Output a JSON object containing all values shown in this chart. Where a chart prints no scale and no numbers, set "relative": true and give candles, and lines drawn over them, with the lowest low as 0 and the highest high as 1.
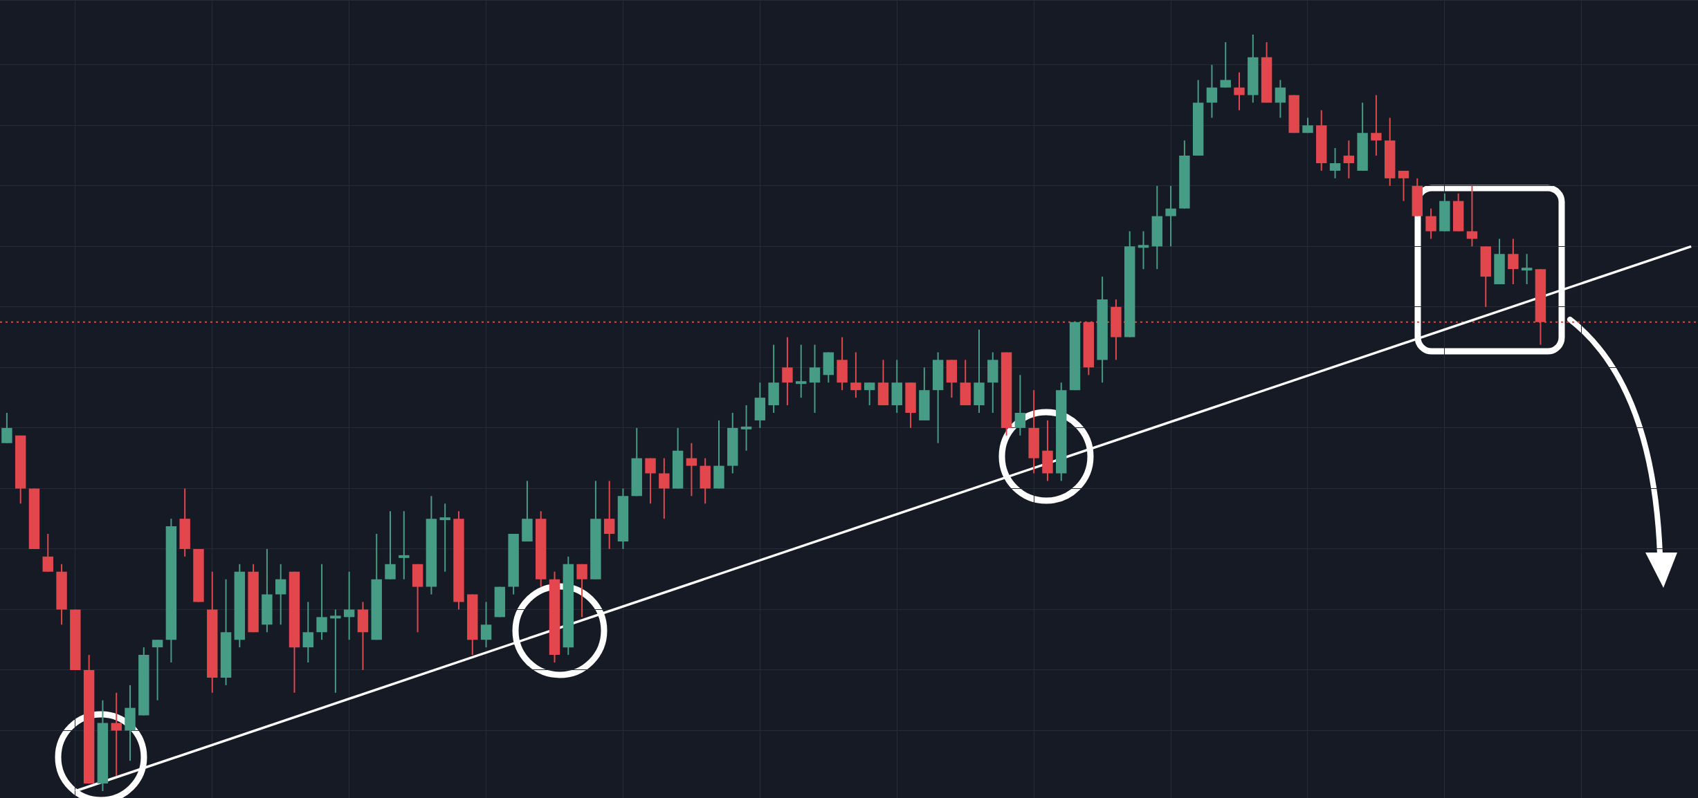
{
  "chart_data": {
    "type": "candlestick",
    "relative": true,
    "grid": true,
    "legend": false,
    "tick_labels": false,
    "categories": [
      null,
      null,
      null,
      null,
      null,
      null,
      null,
      null,
      null,
      null,
      null,
      null,
      null,
      null,
      null,
      null,
      null,
      null,
      null,
      null,
      null,
      null,
      null,
      null,
      null,
      null,
      null,
      null,
      null,
      null,
      null,
      null,
      null,
      null,
      null,
      null,
      null,
      null,
      null,
      null,
      null,
      null,
      null,
      null,
      null,
      null,
      null,
      null,
      null,
      null,
      null,
      null,
      null,
      null,
      null,
      null,
      null,
      null,
      null,
      null,
      null,
      null,
      null,
      null,
      null,
      null,
      null,
      null,
      null,
      null,
      null,
      null,
      null,
      null,
      null,
      null,
      null,
      null,
      null,
      null,
      null,
      null,
      null,
      null,
      null,
      null,
      null,
      null,
      null,
      null,
      null,
      null,
      null,
      null,
      null,
      null,
      null,
      null,
      null,
      null,
      null,
      null,
      null,
      null,
      null,
      null,
      null,
      null,
      null,
      null,
      null,
      null,
      null,
      null,
      null,
      null,
      null,
      null,
      null,
      null,
      null,
      null,
      null,
      null
    ],
    "ohlc": [
      [
        0.46,
        0.5,
        0.46,
        0.48
      ],
      [
        0.47,
        0.47,
        0.38,
        0.4
      ],
      [
        0.4,
        0.4,
        0.32,
        0.32
      ],
      [
        0.31,
        0.34,
        0.29,
        0.29
      ],
      [
        0.29,
        0.3,
        0.22,
        0.24
      ],
      [
        0.24,
        0.24,
        0.16,
        0.16
      ],
      [
        0.16,
        0.18,
        0.01,
        0.01
      ],
      [
        0.01,
        0.12,
        0.0,
        0.09
      ],
      [
        0.09,
        0.13,
        0.02,
        0.08
      ],
      [
        0.08,
        0.14,
        0.04,
        0.11
      ],
      [
        0.1,
        0.19,
        0.1,
        0.18
      ],
      [
        0.19,
        0.2,
        0.12,
        0.2
      ],
      [
        0.2,
        0.36,
        0.17,
        0.35
      ],
      [
        0.36,
        0.4,
        0.31,
        0.32
      ],
      [
        0.32,
        0.32,
        0.25,
        0.25
      ],
      [
        0.24,
        0.29,
        0.13,
        0.15
      ],
      [
        0.15,
        0.28,
        0.14,
        0.21
      ],
      [
        0.2,
        0.3,
        0.19,
        0.29
      ],
      [
        0.29,
        0.3,
        0.21,
        0.21
      ],
      [
        0.22,
        0.32,
        0.21,
        0.26
      ],
      [
        0.26,
        0.3,
        0.22,
        0.28
      ],
      [
        0.29,
        0.29,
        0.13,
        0.19
      ],
      [
        0.19,
        0.25,
        0.17,
        0.21
      ],
      [
        0.21,
        0.3,
        0.2,
        0.23
      ],
      [
        0.23,
        0.24,
        0.13,
        0.23
      ],
      [
        0.23,
        0.29,
        0.2,
        0.24
      ],
      [
        0.24,
        0.25,
        0.16,
        0.21
      ],
      [
        0.2,
        0.34,
        0.2,
        0.28
      ],
      [
        0.28,
        0.37,
        0.28,
        0.3
      ],
      [
        0.31,
        0.37,
        0.28,
        0.31
      ],
      [
        0.3,
        0.3,
        0.21,
        0.27
      ],
      [
        0.27,
        0.39,
        0.26,
        0.36
      ],
      [
        0.36,
        0.38,
        0.29,
        0.36
      ],
      [
        0.36,
        0.37,
        0.24,
        0.25
      ],
      [
        0.26,
        0.26,
        0.18,
        0.2
      ],
      [
        0.2,
        0.25,
        0.19,
        0.22
      ],
      [
        0.23,
        0.27,
        0.23,
        0.27
      ],
      [
        0.27,
        0.34,
        0.26,
        0.34
      ],
      [
        0.33,
        0.41,
        0.33,
        0.36
      ],
      [
        0.36,
        0.37,
        0.27,
        0.28
      ],
      [
        0.28,
        0.29,
        0.17,
        0.18
      ],
      [
        0.19,
        0.31,
        0.18,
        0.3
      ],
      [
        0.3,
        0.3,
        0.23,
        0.28
      ],
      [
        0.28,
        0.41,
        0.28,
        0.36
      ],
      [
        0.36,
        0.41,
        0.32,
        0.34
      ],
      [
        0.33,
        0.4,
        0.32,
        0.39
      ],
      [
        0.39,
        0.48,
        0.39,
        0.44
      ],
      [
        0.44,
        0.44,
        0.38,
        0.42
      ],
      [
        0.42,
        0.44,
        0.36,
        0.4
      ],
      [
        0.4,
        0.48,
        0.4,
        0.45
      ],
      [
        0.44,
        0.46,
        0.39,
        0.43
      ],
      [
        0.43,
        0.44,
        0.38,
        0.4
      ],
      [
        0.4,
        0.49,
        0.4,
        0.43
      ],
      [
        0.43,
        0.5,
        0.42,
        0.48
      ],
      [
        0.48,
        0.51,
        0.45,
        0.48
      ],
      [
        0.49,
        0.54,
        0.48,
        0.52
      ],
      [
        0.51,
        0.59,
        0.5,
        0.54
      ],
      [
        0.56,
        0.6,
        0.51,
        0.54
      ],
      [
        0.54,
        0.59,
        0.52,
        0.54
      ],
      [
        0.54,
        0.59,
        0.5,
        0.56
      ],
      [
        0.55,
        0.58,
        0.54,
        0.58
      ],
      [
        0.57,
        0.6,
        0.53,
        0.54
      ],
      [
        0.54,
        0.58,
        0.52,
        0.53
      ],
      [
        0.53,
        0.54,
        0.51,
        0.54
      ],
      [
        0.54,
        0.57,
        0.51,
        0.51
      ],
      [
        0.51,
        0.57,
        0.5,
        0.54
      ],
      [
        0.54,
        0.54,
        0.48,
        0.5
      ],
      [
        0.49,
        0.56,
        0.49,
        0.53
      ],
      [
        0.53,
        0.58,
        0.46,
        0.57
      ],
      [
        0.57,
        0.57,
        0.52,
        0.54
      ],
      [
        0.54,
        0.57,
        0.51,
        0.51
      ],
      [
        0.51,
        0.61,
        0.5,
        0.54
      ],
      [
        0.54,
        0.58,
        0.5,
        0.57
      ],
      [
        0.58,
        0.58,
        0.47,
        0.48
      ],
      [
        0.48,
        0.55,
        0.47,
        0.5
      ],
      [
        0.48,
        0.53,
        0.42,
        0.44
      ],
      [
        0.45,
        0.49,
        0.41,
        0.42
      ],
      [
        0.42,
        0.54,
        0.41,
        0.53
      ],
      [
        0.53,
        0.62,
        0.53,
        0.62
      ],
      [
        0.62,
        0.62,
        0.55,
        0.56
      ],
      [
        0.57,
        0.68,
        0.54,
        0.65
      ],
      [
        0.64,
        0.65,
        0.57,
        0.6
      ],
      [
        0.6,
        0.74,
        0.6,
        0.72
      ],
      [
        0.72,
        0.74,
        0.69,
        0.72
      ],
      [
        0.72,
        0.8,
        0.69,
        0.76
      ],
      [
        0.76,
        0.8,
        0.72,
        0.77
      ],
      [
        0.77,
        0.86,
        0.77,
        0.84
      ],
      [
        0.84,
        0.94,
        0.84,
        0.91
      ],
      [
        0.91,
        0.96,
        0.89,
        0.93
      ],
      [
        0.93,
        0.99,
        0.93,
        0.94
      ],
      [
        0.93,
        0.95,
        0.9,
        0.92
      ],
      [
        0.92,
        1.0,
        0.91,
        0.97
      ],
      [
        0.97,
        0.99,
        0.91,
        0.91
      ],
      [
        0.91,
        0.94,
        0.89,
        0.93
      ],
      [
        0.92,
        0.92,
        0.87,
        0.87
      ],
      [
        0.87,
        0.89,
        0.87,
        0.88
      ],
      [
        0.88,
        0.9,
        0.82,
        0.83
      ],
      [
        0.82,
        0.85,
        0.81,
        0.83
      ],
      [
        0.84,
        0.86,
        0.81,
        0.83
      ],
      [
        0.82,
        0.91,
        0.82,
        0.87
      ],
      [
        0.87,
        0.92,
        0.84,
        0.86
      ],
      [
        0.86,
        0.89,
        0.8,
        0.81
      ],
      [
        0.82,
        0.82,
        0.78,
        0.81
      ],
      [
        0.8,
        0.81,
        0.76,
        0.76
      ],
      [
        0.76,
        0.77,
        0.73,
        0.74
      ],
      [
        0.74,
        0.79,
        0.74,
        0.78
      ],
      [
        0.78,
        0.79,
        0.74,
        0.74
      ],
      [
        0.74,
        0.8,
        0.72,
        0.73
      ],
      [
        0.72,
        0.72,
        0.64,
        0.68
      ],
      [
        0.67,
        0.73,
        0.67,
        0.71
      ],
      [
        0.71,
        0.73,
        0.67,
        0.69
      ],
      [
        0.69,
        0.71,
        0.67,
        0.69
      ],
      [
        0.69,
        0.69,
        0.59,
        0.62
      ],
      null,
      null,
      null,
      null,
      null,
      null,
      null,
      null,
      null,
      null,
      null
    ],
    "colors": [
      "#479c85",
      "#e2474d",
      "#e2474d",
      "#e2474d",
      "#e2474d",
      "#e2474d",
      "#e2474d",
      "#479c85",
      "#e2474d",
      "#479c85",
      "#479c85",
      "#479c85",
      "#479c85",
      "#e2474d",
      "#e2474d",
      "#e2474d",
      "#479c85",
      "#479c85",
      "#e2474d",
      "#479c85",
      "#479c85",
      "#e2474d",
      "#479c85",
      "#479c85",
      "#479c85",
      "#479c85",
      "#e2474d",
      "#479c85",
      "#479c85",
      "#479c85",
      "#e2474d",
      "#479c85",
      "#479c85",
      "#e2474d",
      "#e2474d",
      "#479c85",
      "#479c85",
      "#479c85",
      "#479c85",
      "#e2474d",
      "#e2474d",
      "#479c85",
      "#e2474d",
      "#479c85",
      "#e2474d",
      "#479c85",
      "#479c85",
      "#e2474d",
      "#e2474d",
      "#479c85",
      "#e2474d",
      "#e2474d",
      "#479c85",
      "#479c85",
      "#479c85",
      "#479c85",
      "#479c85",
      "#e2474d",
      "#479c85",
      "#479c85",
      "#479c85",
      "#e2474d",
      "#e2474d",
      "#479c85",
      "#e2474d",
      "#479c85",
      "#e2474d",
      "#479c85",
      "#479c85",
      "#e2474d",
      "#e2474d",
      "#479c85",
      "#479c85",
      "#e2474d",
      "#479c85",
      "#e2474d",
      "#e2474d",
      "#479c85",
      "#479c85",
      "#e2474d",
      "#479c85",
      "#e2474d",
      "#479c85",
      "#479c85",
      "#479c85",
      "#479c85",
      "#479c85",
      "#479c85",
      "#479c85",
      "#479c85",
      "#e2474d",
      "#479c85",
      "#e2474d",
      "#479c85",
      "#e2474d",
      "#479c85",
      "#e2474d",
      "#479c85",
      "#e2474d",
      "#479c85",
      "#e2474d",
      "#e2474d",
      "#e2474d",
      "#e2474d",
      "#e2474d",
      "#479c85",
      "#e2474d",
      "#e2474d",
      "#e2474d",
      "#479c85",
      "#e2474d",
      "#479c85",
      "#e2474d",
      null,
      null,
      null,
      null,
      null,
      null,
      null,
      null,
      null,
      null,
      null
    ],
    "series": [
      {
        "type": "line",
        "color": "#ffffff",
        "values": [
          null,
          null,
          null,
          null,
          null,
          0.0,
          null,
          null,
          null,
          null,
          null,
          null,
          null,
          null,
          null,
          null,
          null,
          null,
          null,
          null,
          null,
          null,
          null,
          null,
          null,
          null,
          null,
          null,
          null,
          null,
          null,
          null,
          null,
          null,
          null,
          null,
          null,
          null,
          null,
          null,
          null,
          null,
          null,
          null,
          null,
          null,
          null,
          null,
          null,
          null,
          null,
          null,
          null,
          null,
          null,
          null,
          null,
          null,
          null,
          null,
          null,
          null,
          null,
          null,
          null,
          null,
          null,
          null,
          null,
          null,
          null,
          null,
          null,
          null,
          null,
          null,
          null,
          null,
          null,
          null,
          null,
          null,
          null,
          null,
          null,
          null,
          null,
          null,
          null,
          null,
          null,
          null,
          null,
          null,
          null,
          null,
          null,
          null,
          null,
          null,
          null,
          null,
          null,
          null,
          null,
          null,
          null,
          null,
          null,
          null,
          null,
          null,
          null,
          null,
          null,
          null,
          null,
          null,
          null,
          null,
          null,
          null,
          null,
          0.72
        ]
      }
    ],
    "ref_lines": [
      {
        "axis": "y",
        "value": 0.62,
        "color": "#e2474d",
        "line_style": "dotted"
      }
    ]
  }
}
